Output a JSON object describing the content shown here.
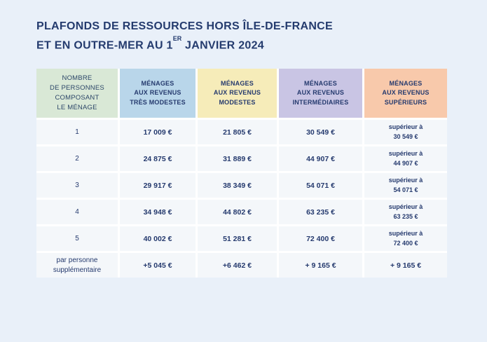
{
  "title": {
    "line1": "PLAFONDS DE RESSOURCES HORS ÎLE-DE-FRANCE",
    "line2_prefix": "ET EN OUTRE-MER AU 1",
    "line2_superscript": "ER",
    "line2_suffix": " JANVIER 2024"
  },
  "colors": {
    "page_background": "#e9f0f9",
    "cell_background": "#f4f7fa",
    "separator": "#ffffff",
    "title_text": "#243b6e",
    "value_text": "#253a6e",
    "column_household": "#d9e8d6",
    "column_tres_modestes": "#b9d6ea",
    "column_modestes": "#f6ecb9",
    "column_intermediaires": "#c9c5e4",
    "column_superieurs": "#f8c9ab"
  },
  "table": {
    "headers": {
      "household": "NOMBRE\nDE PERSONNES\nCOMPOSANT\nLE MÉNAGE",
      "tres_modestes": "MÉNAGES\nAUX REVENUS\nTRÈS MODESTES",
      "modestes": "MÉNAGES\nAUX REVENUS\nMODESTES",
      "intermediaires": "MÉNAGES\nAUX REVENUS\nINTERMÉDIAIRES",
      "superieurs": "MÉNAGES\nAUX REVENUS\nSUPÉRIEURS"
    },
    "rows": [
      {
        "label": "1",
        "tres_modestes": "17 009 €",
        "modestes": "21 805 €",
        "intermediaires": "30 549 €",
        "superieurs": "supérieur à\n30 549 €"
      },
      {
        "label": "2",
        "tres_modestes": "24 875 €",
        "modestes": "31 889 €",
        "intermediaires": "44 907 €",
        "superieurs": "supérieur à\n44 907 €"
      },
      {
        "label": "3",
        "tres_modestes": "29 917 €",
        "modestes": "38 349 €",
        "intermediaires": "54 071 €",
        "superieurs": "supérieur à\n54 071 €"
      },
      {
        "label": "4",
        "tres_modestes": "34 948 €",
        "modestes": "44 802 €",
        "intermediaires": "63 235 €",
        "superieurs": "supérieur à\n63 235 €"
      },
      {
        "label": "5",
        "tres_modestes": "40 002 €",
        "modestes": "51 281 €",
        "intermediaires": "72 400 €",
        "superieurs": "supérieur à\n72 400 €"
      },
      {
        "label": "par personne\nsupplémentaire",
        "tres_modestes": "+5 045 €",
        "modestes": "+6 462 €",
        "intermediaires": "+ 9 165 €",
        "superieurs": "+ 9 165 €"
      }
    ]
  }
}
